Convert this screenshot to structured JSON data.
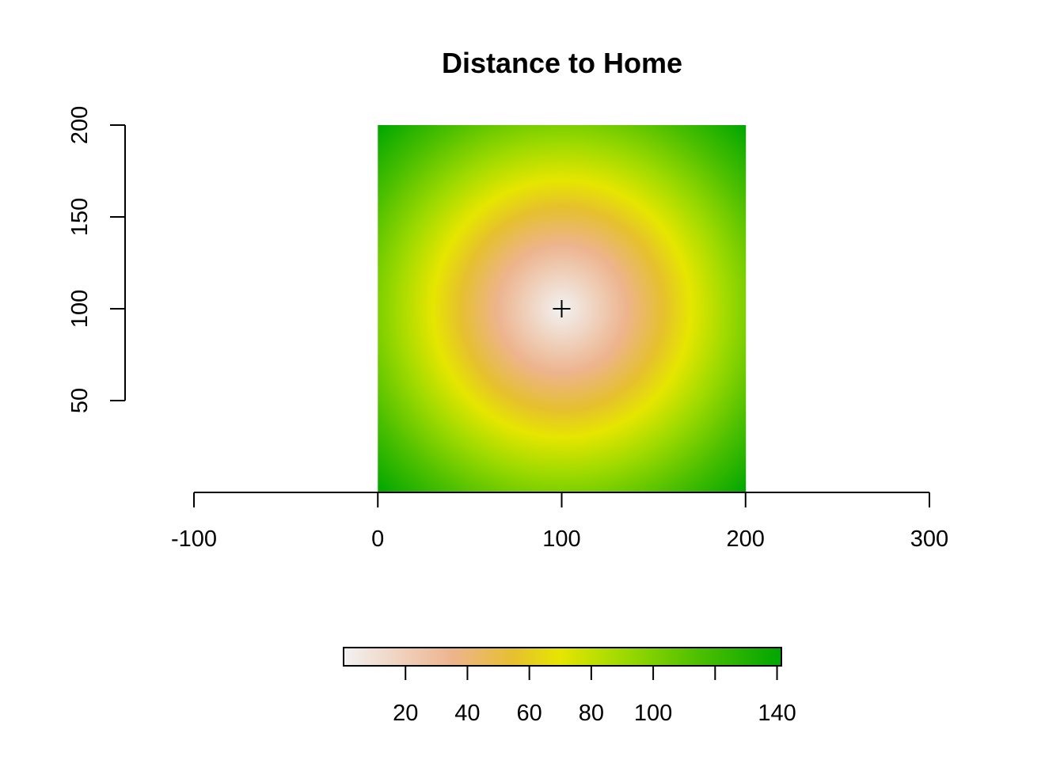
{
  "chart_data": {
    "type": "heatmap",
    "title": "Distance to Home",
    "xlabel": "",
    "ylabel": "",
    "xlim": [
      -100,
      300
    ],
    "ylim": [
      0,
      200
    ],
    "x_ticks": [
      -100,
      0,
      100,
      200,
      300
    ],
    "x_tick_labels": [
      "-100",
      "0",
      "100",
      "200",
      "300"
    ],
    "y_ticks": [
      50,
      100,
      150,
      200
    ],
    "y_tick_labels": [
      "50",
      "100",
      "150",
      "200"
    ],
    "raster": {
      "extent": {
        "xmin": 0,
        "xmax": 200,
        "ymin": 0,
        "ymax": 200
      },
      "value": "distance",
      "home": {
        "x": 100,
        "y": 100
      },
      "value_range": [
        0,
        141.4
      ]
    },
    "home_marker": {
      "x": 100,
      "y": 100,
      "symbol": "+"
    },
    "legend": {
      "position": "bottom",
      "range": [
        0,
        141.4
      ],
      "ticks": [
        20,
        40,
        60,
        80,
        100,
        120,
        140
      ],
      "tick_labels": [
        "20",
        "40",
        "60",
        "80",
        "100",
        "",
        "140"
      ],
      "colors": [
        {
          "value": 0,
          "color": "#F2F2F2"
        },
        {
          "value": 35,
          "color": "#EDB48E"
        },
        {
          "value": 55,
          "color": "#E6C02E"
        },
        {
          "value": 70,
          "color": "#E6E600"
        },
        {
          "value": 90,
          "color": "#9FDA00"
        },
        {
          "value": 115,
          "color": "#4CBF00"
        },
        {
          "value": 141.4,
          "color": "#00A600"
        }
      ]
    },
    "grid": false
  }
}
